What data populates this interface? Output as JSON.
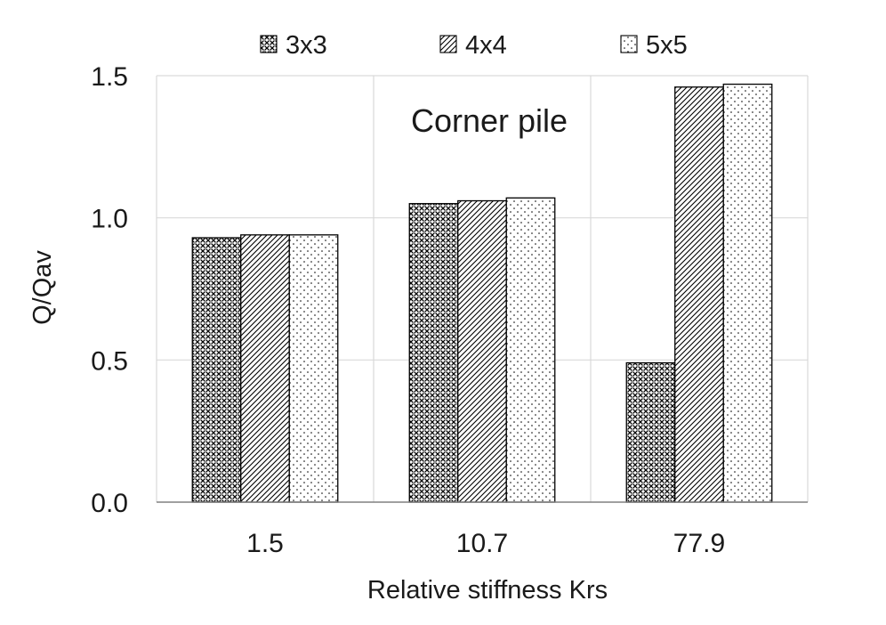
{
  "chart_data": {
    "type": "bar",
    "title": "",
    "annotation": "Corner pile",
    "xlabel": "Relative stiffness Krs",
    "ylabel": "Q/Qav",
    "categories": [
      "1.5",
      "10.7",
      "77.9"
    ],
    "ylim": [
      0,
      1.5
    ],
    "yticks": [
      "0.0",
      "0.5",
      "1.0",
      "1.5"
    ],
    "grid": true,
    "legend_position": "top",
    "series": [
      {
        "name": "3x3",
        "pattern": "crosshatch-dense",
        "values": [
          0.93,
          1.05,
          0.49
        ]
      },
      {
        "name": "4x4",
        "pattern": "diagonal-lines",
        "values": [
          0.94,
          1.06,
          1.46
        ]
      },
      {
        "name": "5x5",
        "pattern": "dots",
        "values": [
          0.94,
          1.07,
          1.47
        ]
      }
    ],
    "colors": {
      "bar_stroke": "#000000",
      "grid": "#d9d9d9",
      "axis": "#808080",
      "pattern_ink": "#000000"
    }
  }
}
